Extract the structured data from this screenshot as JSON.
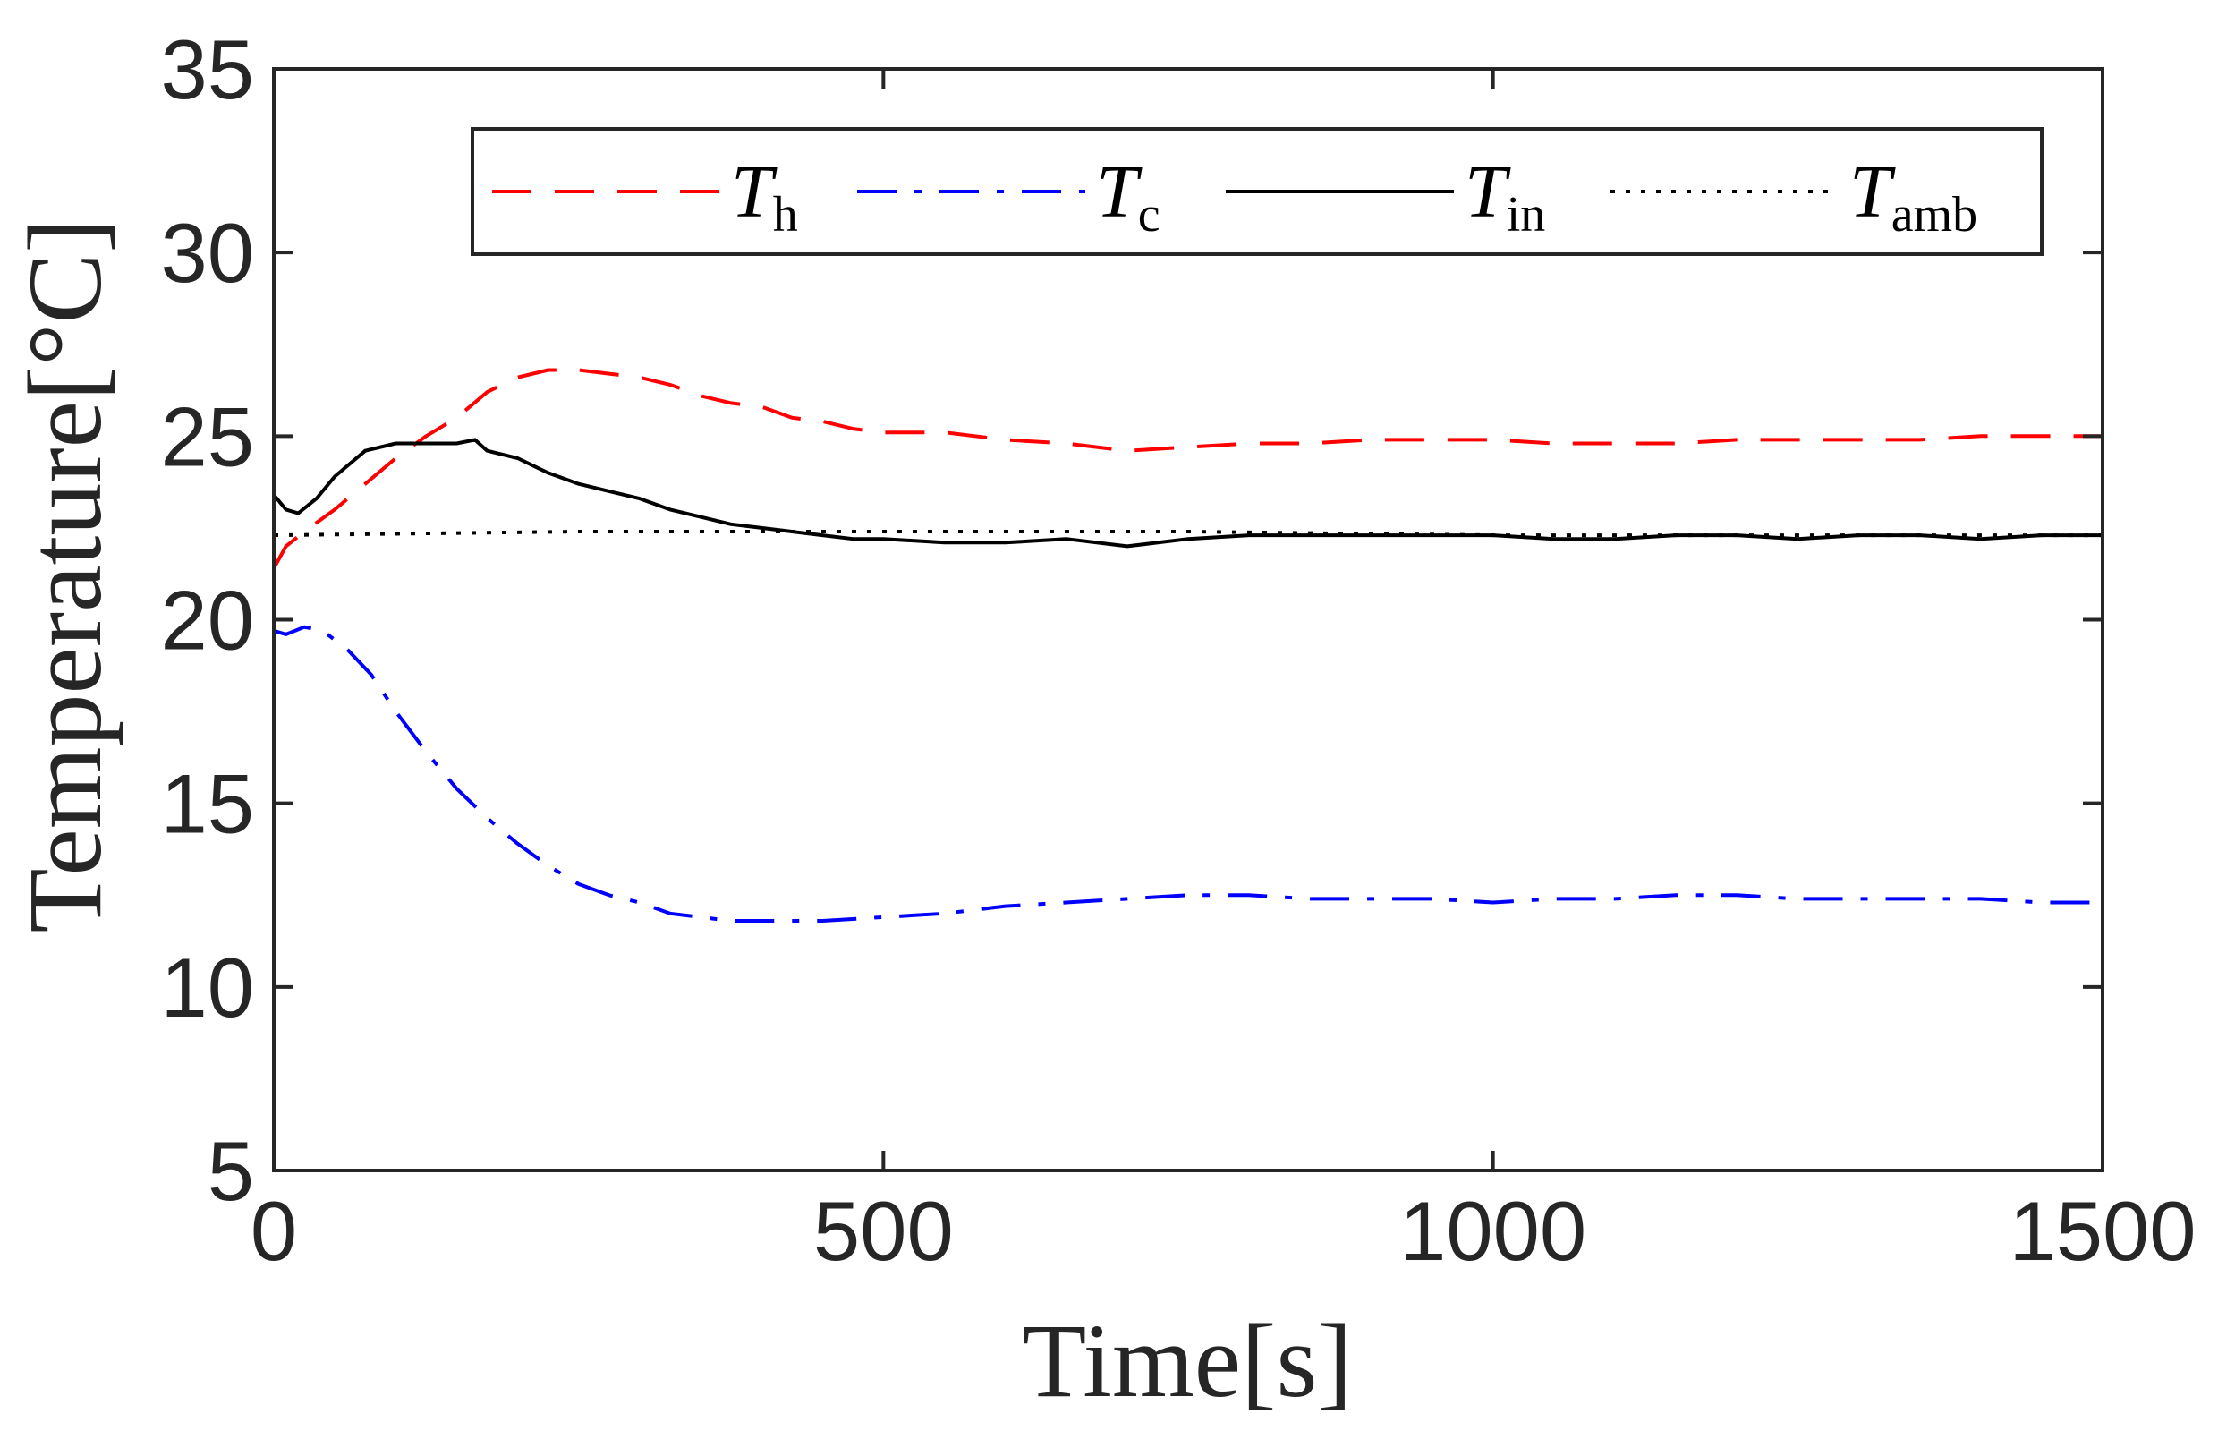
{
  "chart_data": {
    "type": "line",
    "title": "",
    "xlabel": "Time[s]",
    "ylabel": "Temperature[°C]",
    "xlim": [
      0,
      1500
    ],
    "ylim": [
      5,
      35
    ],
    "xticks": [
      0,
      500,
      1000,
      1500
    ],
    "yticks": [
      5,
      10,
      15,
      20,
      25,
      30,
      35
    ],
    "xtick_labels": [
      "0",
      "500",
      "1000",
      "1500"
    ],
    "ytick_labels": [
      "5",
      "10",
      "15",
      "20",
      "25",
      "30",
      "35"
    ],
    "grid": false,
    "legend_position": "top",
    "series": [
      {
        "name": "T_h",
        "legend_main": "T",
        "legend_sub": "h",
        "color": "#ff0000",
        "style": "dashed",
        "x": [
          0,
          10,
          25,
          50,
          75,
          100,
          125,
          150,
          175,
          200,
          225,
          250,
          275,
          300,
          325,
          350,
          375,
          400,
          425,
          450,
          475,
          500,
          550,
          600,
          650,
          700,
          750,
          800,
          850,
          900,
          950,
          1000,
          1050,
          1100,
          1150,
          1200,
          1250,
          1300,
          1350,
          1400,
          1450,
          1500
        ],
        "y": [
          21.4,
          22.0,
          22.4,
          23.0,
          23.7,
          24.4,
          25.0,
          25.5,
          26.2,
          26.6,
          26.8,
          26.8,
          26.7,
          26.6,
          26.4,
          26.1,
          25.9,
          25.8,
          25.5,
          25.4,
          25.2,
          25.1,
          25.1,
          24.9,
          24.8,
          24.6,
          24.7,
          24.8,
          24.8,
          24.9,
          24.9,
          24.9,
          24.8,
          24.8,
          24.8,
          24.9,
          24.9,
          24.9,
          24.9,
          25.0,
          25.0,
          25.0
        ]
      },
      {
        "name": "T_c",
        "legend_main": "T",
        "legend_sub": "c",
        "color": "#0000ff",
        "style": "dashdot",
        "x": [
          0,
          10,
          25,
          40,
          60,
          80,
          100,
          125,
          150,
          175,
          200,
          225,
          250,
          275,
          300,
          325,
          350,
          375,
          400,
          450,
          500,
          550,
          600,
          650,
          700,
          750,
          800,
          850,
          900,
          950,
          1000,
          1050,
          1100,
          1150,
          1200,
          1250,
          1300,
          1350,
          1400,
          1450,
          1500
        ],
        "y": [
          19.7,
          19.6,
          19.8,
          19.7,
          19.2,
          18.5,
          17.5,
          16.4,
          15.4,
          14.6,
          13.9,
          13.3,
          12.8,
          12.5,
          12.3,
          12.0,
          11.9,
          11.8,
          11.8,
          11.8,
          11.9,
          12.0,
          12.2,
          12.3,
          12.4,
          12.5,
          12.5,
          12.4,
          12.4,
          12.4,
          12.3,
          12.4,
          12.4,
          12.5,
          12.5,
          12.4,
          12.4,
          12.4,
          12.4,
          12.3,
          12.3
        ]
      },
      {
        "name": "T_in",
        "legend_main": "T",
        "legend_sub": "in",
        "color": "#000000",
        "style": "solid",
        "x": [
          0,
          10,
          20,
          35,
          50,
          75,
          100,
          125,
          150,
          165,
          175,
          200,
          225,
          250,
          275,
          300,
          325,
          350,
          375,
          400,
          425,
          450,
          475,
          500,
          550,
          600,
          650,
          700,
          750,
          800,
          850,
          900,
          950,
          1000,
          1050,
          1100,
          1150,
          1200,
          1250,
          1300,
          1350,
          1400,
          1450,
          1500
        ],
        "y": [
          23.4,
          23.0,
          22.9,
          23.3,
          23.9,
          24.6,
          24.8,
          24.8,
          24.8,
          24.9,
          24.6,
          24.4,
          24.0,
          23.7,
          23.5,
          23.3,
          23.0,
          22.8,
          22.6,
          22.5,
          22.4,
          22.3,
          22.2,
          22.2,
          22.1,
          22.1,
          22.2,
          22.0,
          22.2,
          22.3,
          22.3,
          22.3,
          22.3,
          22.3,
          22.2,
          22.2,
          22.3,
          22.3,
          22.2,
          22.3,
          22.3,
          22.2,
          22.3,
          22.3
        ]
      },
      {
        "name": "T_amb",
        "legend_main": "T",
        "legend_sub": "amb",
        "color": "#000000",
        "style": "dotted",
        "x": [
          0,
          250,
          500,
          750,
          1000,
          1250,
          1500
        ],
        "y": [
          22.3,
          22.4,
          22.4,
          22.4,
          22.3,
          22.3,
          22.3
        ]
      }
    ]
  }
}
